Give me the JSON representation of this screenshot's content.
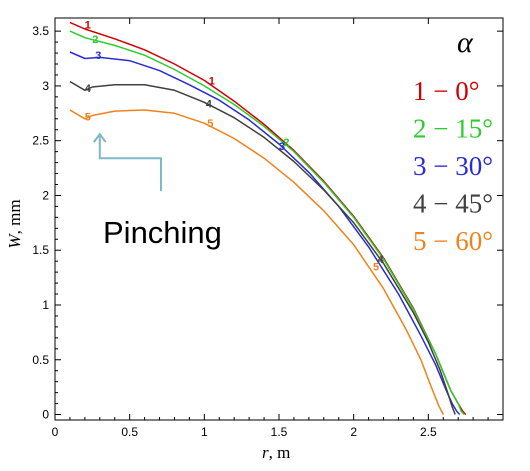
{
  "chart_data": {
    "type": "line",
    "xlabel": {
      "symbol": "r",
      "unit": ", m"
    },
    "ylabel": {
      "symbol": "W",
      "unit": ", mm"
    },
    "xlim": [
      0,
      3.0
    ],
    "ylim": [
      -0.05,
      3.62
    ],
    "x_ticks": [
      "0",
      "0.5",
      "1",
      "1.5",
      "2",
      "2.5"
    ],
    "x_tick_values": [
      0,
      0.5,
      1,
      1.5,
      2,
      2.5
    ],
    "y_ticks": [
      "0",
      "0.5",
      "1",
      "1.5",
      "2",
      "2.5",
      "3",
      "3.5"
    ],
    "y_tick_values": [
      0,
      0.5,
      1,
      1.5,
      2,
      2.5,
      3,
      3.5
    ],
    "legend_title": "α",
    "legend_placement": "top-right",
    "series": [
      {
        "name": "1 − 0°",
        "label": "1",
        "color": "#d10000",
        "x": [
          0.1,
          0.2,
          0.4,
          0.6,
          0.8,
          1.0,
          1.2,
          1.4,
          1.6,
          1.8,
          2.0,
          2.2,
          2.4,
          2.55,
          2.65,
          2.7,
          2.73,
          2.75
        ],
        "y": [
          3.58,
          3.52,
          3.43,
          3.33,
          3.2,
          3.05,
          2.86,
          2.65,
          2.41,
          2.13,
          1.81,
          1.43,
          0.97,
          0.55,
          0.22,
          0.1,
          0.03,
          0.0
        ]
      },
      {
        "name": "2 − 15°",
        "label": "2",
        "color": "#2ecc2e",
        "x": [
          0.1,
          0.2,
          0.4,
          0.6,
          0.8,
          1.0,
          1.2,
          1.4,
          1.6,
          1.8,
          2.0,
          2.2,
          2.4,
          2.55,
          2.65,
          2.7,
          2.72,
          2.74
        ],
        "y": [
          3.5,
          3.44,
          3.37,
          3.28,
          3.15,
          3.0,
          2.83,
          2.63,
          2.4,
          2.12,
          1.8,
          1.42,
          0.96,
          0.55,
          0.22,
          0.1,
          0.03,
          0.0
        ]
      },
      {
        "name": "3 − 30°",
        "label": "3",
        "color": "#2b2bd4",
        "x": [
          0.1,
          0.2,
          0.3,
          0.5,
          0.7,
          0.9,
          1.1,
          1.3,
          1.5,
          1.7,
          1.9,
          2.1,
          2.3,
          2.45,
          2.55,
          2.62,
          2.66,
          2.69,
          2.71
        ],
        "y": [
          3.31,
          3.25,
          3.26,
          3.23,
          3.14,
          3.01,
          2.87,
          2.69,
          2.47,
          2.21,
          1.9,
          1.53,
          1.1,
          0.72,
          0.45,
          0.22,
          0.1,
          0.03,
          0.0
        ]
      },
      {
        "name": "4 − 45°",
        "label": "4",
        "color": "#404040",
        "x": [
          0.1,
          0.2,
          0.25,
          0.4,
          0.6,
          0.8,
          1.0,
          1.2,
          1.4,
          1.6,
          1.8,
          2.0,
          2.2,
          2.4,
          2.5,
          2.58,
          2.63,
          2.66,
          2.68
        ],
        "y": [
          3.04,
          2.96,
          2.99,
          3.01,
          3.01,
          2.96,
          2.85,
          2.71,
          2.53,
          2.31,
          2.05,
          1.75,
          1.38,
          0.93,
          0.66,
          0.4,
          0.2,
          0.07,
          0.0
        ]
      },
      {
        "name": "5 − 60°",
        "label": "5",
        "color": "#f0821e",
        "x": [
          0.1,
          0.2,
          0.25,
          0.4,
          0.6,
          0.8,
          1.0,
          1.2,
          1.4,
          1.6,
          1.8,
          2.0,
          2.2,
          2.35,
          2.45,
          2.52,
          2.57,
          2.6
        ],
        "y": [
          2.78,
          2.7,
          2.73,
          2.77,
          2.78,
          2.75,
          2.66,
          2.52,
          2.34,
          2.12,
          1.86,
          1.55,
          1.15,
          0.78,
          0.5,
          0.25,
          0.08,
          0.0
        ]
      }
    ],
    "curve_labels": [
      {
        "series": 0,
        "text": "1",
        "x": 0.22,
        "y": 3.56
      },
      {
        "series": 0,
        "text": "1",
        "x": 1.05,
        "y": 3.05
      },
      {
        "series": 1,
        "text": "2",
        "x": 0.27,
        "y": 3.43
      },
      {
        "series": 1,
        "text": "2",
        "x": 1.55,
        "y": 2.49
      },
      {
        "series": 2,
        "text": "3",
        "x": 0.29,
        "y": 3.28
      },
      {
        "series": 2,
        "text": "3",
        "x": 1.52,
        "y": 2.45
      },
      {
        "series": 3,
        "text": "4",
        "x": 0.22,
        "y": 2.98
      },
      {
        "series": 3,
        "text": "4",
        "x": 1.03,
        "y": 2.84
      },
      {
        "series": 3,
        "text": "4",
        "x": 2.18,
        "y": 1.42
      },
      {
        "series": 4,
        "text": "5",
        "x": 0.22,
        "y": 2.72
      },
      {
        "series": 4,
        "text": "5",
        "x": 1.04,
        "y": 2.66
      },
      {
        "series": 4,
        "text": "5",
        "x": 2.15,
        "y": 1.35
      }
    ],
    "annotation": {
      "text": "Pinching",
      "arrow_color": "#7fb8c8",
      "tip": {
        "x": 0.3,
        "y": 2.56
      },
      "corner": {
        "x": 0.3,
        "y": 2.34
      },
      "elbow": {
        "x": 0.71,
        "y": 2.34
      },
      "tail": {
        "x": 0.71,
        "y": 2.04
      }
    }
  }
}
